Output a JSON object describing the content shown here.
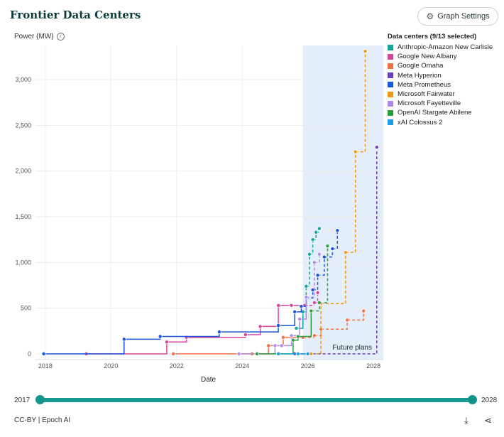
{
  "header": {
    "title": "Frontier Data Centers",
    "settings_label": "Graph Settings"
  },
  "axis": {
    "ylabel": "Power (MW)",
    "xlabel": "Date"
  },
  "legend": {
    "title": "Data centers (9/13 selected)"
  },
  "slider": {
    "min_label": "2017",
    "max_label": "2028"
  },
  "footer": {
    "credit": "CC-BY | Epoch AI"
  },
  "chart_data": {
    "type": "line",
    "title": "Frontier Data Centers",
    "xlabel": "Date",
    "ylabel": "Power (MW)",
    "xlim": [
      2017.7,
      2028.3
    ],
    "ylim": [
      0,
      3400
    ],
    "yticks": [
      0,
      500,
      1000,
      1500,
      2000,
      2500,
      3000
    ],
    "ytick_labels": [
      "0",
      "500",
      "1,000",
      "1,500",
      "2,000",
      "2,500",
      "3,000"
    ],
    "xticks": [
      2018,
      2020,
      2022,
      2024,
      2026,
      2028
    ],
    "xtick_labels": [
      "2018",
      "2020",
      "2022",
      "2024",
      "2026",
      "2028"
    ],
    "shaded_region": {
      "x": [
        2025.85,
        2028.3
      ],
      "label": "Future plans"
    },
    "grid": "on",
    "legend_placement": "right",
    "series": [
      {
        "name": "Anthropic-Amazon New Carlisle",
        "color": "#12a59a",
        "future_from": 2025.85,
        "x": [
          2025.65,
          2025.85,
          2025.95,
          2026.05,
          2026.15,
          2026.25,
          2026.35
        ],
        "y": [
          280,
          460,
          740,
          1090,
          1250,
          1330,
          1370
        ]
      },
      {
        "name": "Google New Albany",
        "color": "#d6459b",
        "future_from": 2025.85,
        "x": [
          2019.25,
          2021.7,
          2022.3,
          2024.1,
          2024.55,
          2025.1,
          2025.5,
          2025.9,
          2026.2,
          2026.3
        ],
        "y": [
          0,
          130,
          180,
          210,
          300,
          530,
          530,
          530,
          560,
          670
        ]
      },
      {
        "name": "Google Omaha",
        "color": "#f07044",
        "future_from": 2025.85,
        "x": [
          2021.9,
          2024.3,
          2024.8,
          2025.25,
          2025.85,
          2026.2,
          2026.4,
          2027.2,
          2027.7
        ],
        "y": [
          0,
          0,
          90,
          180,
          180,
          200,
          270,
          370,
          470
        ]
      },
      {
        "name": "Meta Hyperion",
        "color": "#6b3fc0",
        "future_from": 2025.85,
        "x": [
          2025.6,
          2026.0,
          2028.1
        ],
        "y": [
          0,
          0,
          2260
        ]
      },
      {
        "name": "Meta Prometheus",
        "color": "#1a55d6",
        "future_from": 2025.85,
        "x": [
          2017.95,
          2020.4,
          2021.5,
          2023.3,
          2025.1,
          2025.6,
          2025.8,
          2025.95,
          2026.15,
          2026.3,
          2026.5,
          2026.75,
          2026.9
        ],
        "y": [
          0,
          160,
          190,
          240,
          310,
          460,
          520,
          610,
          700,
          860,
          1060,
          1150,
          1350
        ]
      },
      {
        "name": "Microsoft Fairwater",
        "color": "#ef9a16",
        "future_from": 2025.85,
        "x": [
          2026.1,
          2026.4,
          2027.15,
          2027.45,
          2027.75
        ],
        "y": [
          0,
          550,
          1110,
          2210,
          3310
        ]
      },
      {
        "name": "Microsoft Fayetteville",
        "color": "#b08ae8",
        "future_from": 2025.85,
        "x": [
          2023.9,
          2025.0,
          2025.2,
          2025.5,
          2025.75,
          2025.95,
          2026.2,
          2026.35
        ],
        "y": [
          0,
          90,
          90,
          200,
          380,
          620,
          1000,
          1090
        ]
      },
      {
        "name": "OpenAI Stargate Abilene",
        "color": "#27a13b",
        "future_from": 2025.85,
        "x": [
          2024.45,
          2025.55,
          2025.7,
          2026.1,
          2026.35,
          2026.6
        ],
        "y": [
          0,
          150,
          190,
          470,
          560,
          1180
        ]
      },
      {
        "name": "xAI Colossus 2",
        "color": "#1d9fe0",
        "future_from": 2025.85,
        "x": [
          2025.1,
          2025.7,
          2026.0
        ],
        "y": [
          0,
          0,
          0
        ]
      }
    ]
  }
}
